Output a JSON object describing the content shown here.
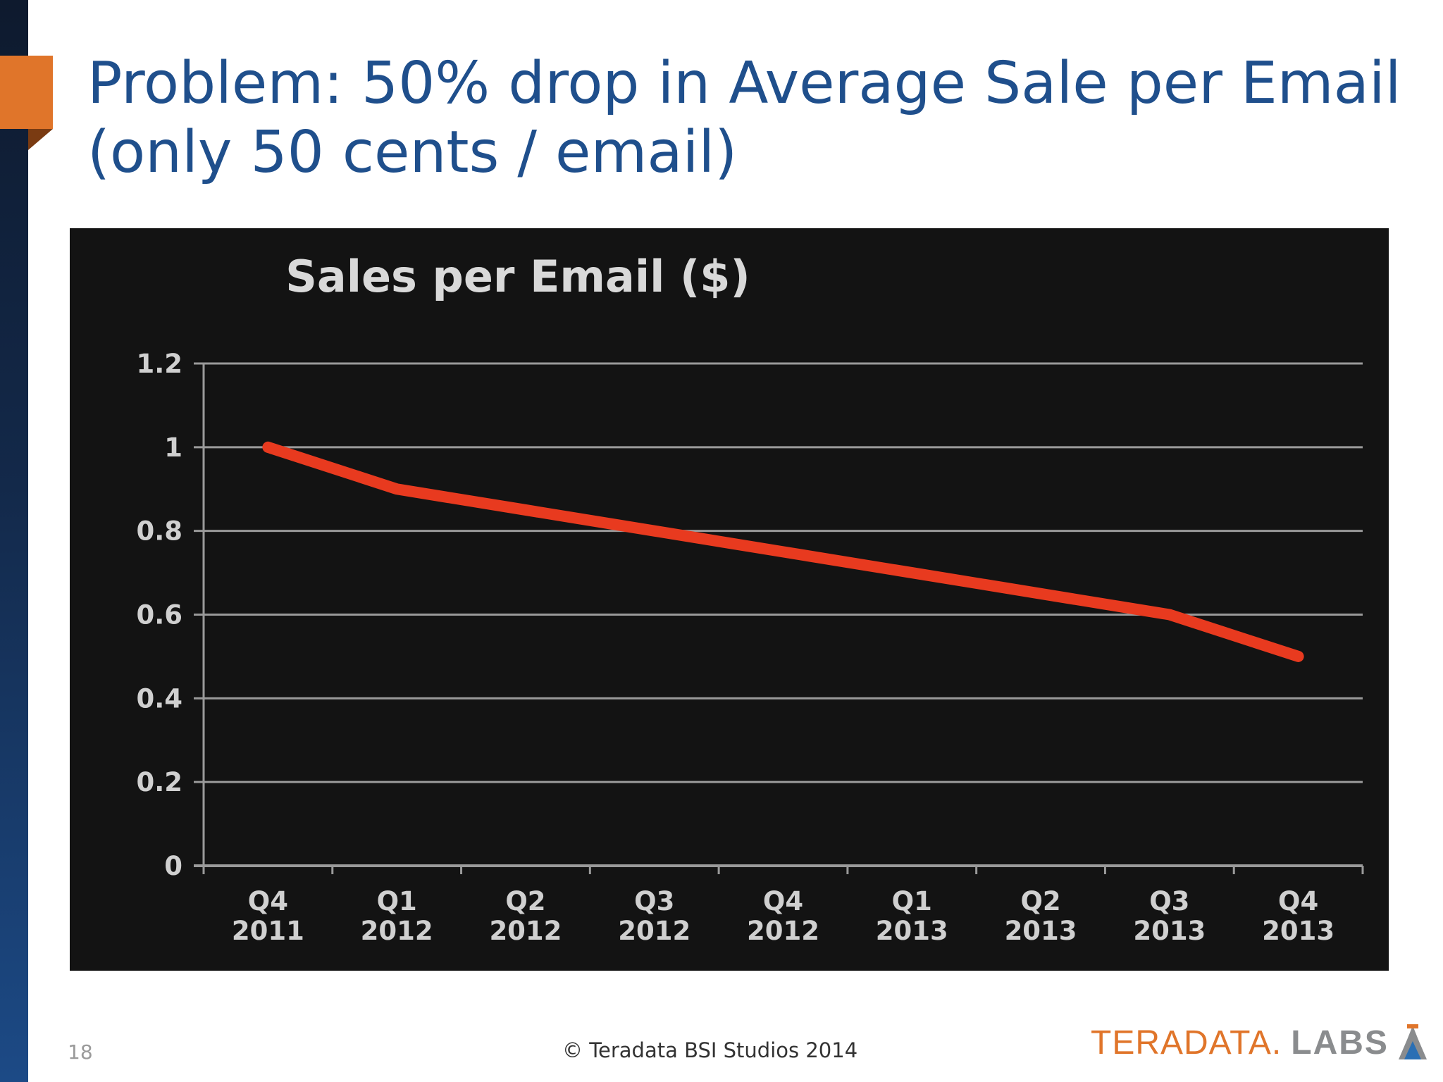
{
  "slide": {
    "title_line1": "Problem: 50% drop in Average Sale per Email",
    "title_line2": "(only 50 cents / email)",
    "page_number": "18",
    "copyright": "© Teradata BSI Studios 2014",
    "logo_brand": "TERADATA",
    "logo_dot": ".",
    "logo_suffix": "LABS"
  },
  "colors": {
    "title": "#1f4f8c",
    "accent": "#e0752a",
    "chart_background": "#131313",
    "line": "#e83a1f",
    "grid": "#9a9a9a"
  },
  "chart_data": {
    "type": "line",
    "title": "Sales per Email ($)",
    "xlabel": "",
    "ylabel": "",
    "categories": [
      [
        "Q4",
        "2011"
      ],
      [
        "Q1",
        "2012"
      ],
      [
        "Q2",
        "2012"
      ],
      [
        "Q3",
        "2012"
      ],
      [
        "Q4",
        "2012"
      ],
      [
        "Q1",
        "2013"
      ],
      [
        "Q2",
        "2013"
      ],
      [
        "Q3",
        "2013"
      ],
      [
        "Q4",
        "2013"
      ]
    ],
    "series": [
      {
        "values": [
          1.0,
          0.9,
          0.85,
          0.8,
          0.75,
          0.7,
          0.65,
          0.6,
          0.5
        ]
      }
    ],
    "ylim": [
      0,
      1.2
    ],
    "yticks": [
      "0",
      "0.2",
      "0.4",
      "0.6",
      "0.8",
      "1",
      "1.2"
    ],
    "grid": true,
    "legend": "none"
  }
}
